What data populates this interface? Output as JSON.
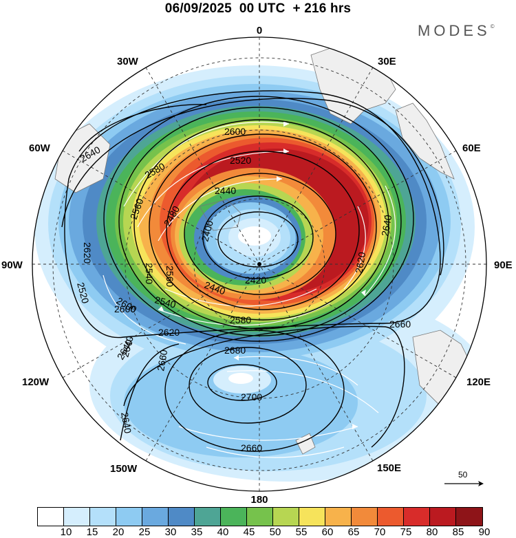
{
  "header": {
    "title": "06/09/2025  00 UTC  + 216 hrs",
    "brand": "MODES",
    "brand_mark": "©"
  },
  "map": {
    "projection": "south-polar-stereographic",
    "longitude_labels": {
      "top": "0",
      "top_right": "30E",
      "right_upper": "60E",
      "right": "90E",
      "right_lower": "120E",
      "bottom_right": "150E",
      "bottom": "180",
      "bottom_left": "150W",
      "left_lower": "120W",
      "left": "90W",
      "left_upper": "60W",
      "top_left": "30W"
    },
    "contour_labels": [
      "2640",
      "2600",
      "2520",
      "2580",
      "2440",
      "2560",
      "2480",
      "2400",
      "2540",
      "2620",
      "2420",
      "2560",
      "2440",
      "2540",
      "2580",
      "2600",
      "2640",
      "2620",
      "2520",
      "2660",
      "2640",
      "2660",
      "2680",
      "2700",
      "2640",
      "2660",
      "2640",
      "2600",
      "2620"
    ],
    "reference_vector": {
      "label": "50",
      "units": "wind speed reference"
    }
  },
  "colorbar": {
    "colors": [
      "#ffffff",
      "#d5eefd",
      "#b4e0fa",
      "#8ecbf2",
      "#6aa9df",
      "#4f8ac6",
      "#4ea595",
      "#4bb45a",
      "#76c24c",
      "#b7d652",
      "#f6e35b",
      "#f7b24b",
      "#f28a3a",
      "#ec5a2e",
      "#d82c2a",
      "#bb1a20",
      "#8e1418"
    ],
    "tick_labels": [
      "10",
      "15",
      "20",
      "25",
      "30",
      "35",
      "40",
      "45",
      "50",
      "55",
      "60",
      "65",
      "70",
      "75",
      "80",
      "85",
      "90"
    ]
  }
}
